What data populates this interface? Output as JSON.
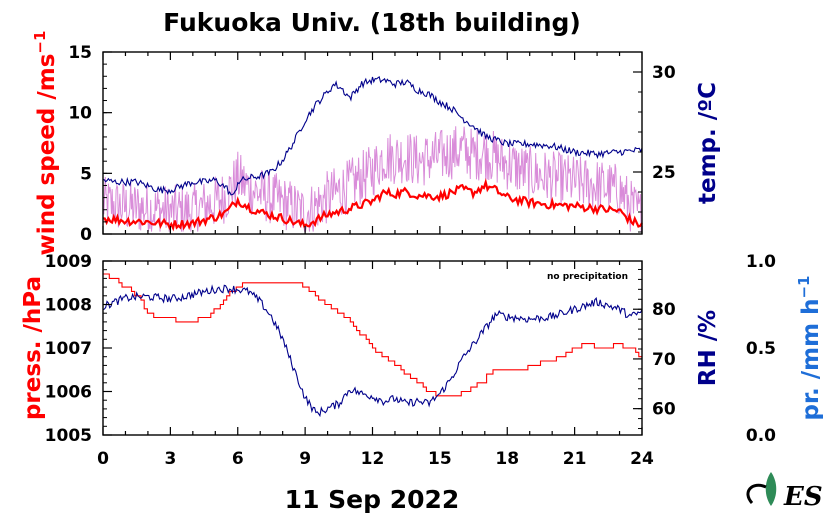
{
  "title": "Fukuoka Univ. (18th building)",
  "date_label": "11 Sep 2022",
  "note": "no precipitation",
  "logo_text": "ES",
  "colors": {
    "wind": "#ff0000",
    "wind_gust": "#cc66cc",
    "temperature": "#00008b",
    "pressure": "#ff0000",
    "humidity": "#00008b",
    "precipitation": "#1e6ed8",
    "logo_leaf": "#2e8b57"
  },
  "chart_data": [
    {
      "type": "line",
      "panel": "top",
      "x_ticks": [
        "0",
        "3",
        "6",
        "9",
        "12",
        "15",
        "18",
        "21",
        "24"
      ],
      "xlim": [
        0,
        24
      ],
      "left_axis": {
        "label": "wind speed /ms",
        "label_superscript": "−1",
        "ylim": [
          0,
          15
        ],
        "ticks": [
          "0",
          "5",
          "10",
          "15"
        ]
      },
      "right_axis": {
        "label": "temp. /ºC",
        "ylim": [
          21.9,
          31
        ],
        "ticks": [
          "25",
          "30"
        ]
      },
      "series": [
        {
          "role": "wind_speed_mean",
          "axis": "left",
          "x": [
            0,
            1,
            2,
            3,
            4,
            5,
            5.5,
            6,
            6.5,
            7,
            8,
            9,
            10,
            11,
            12,
            12.5,
            13,
            13.5,
            14,
            15,
            16,
            16.5,
            17,
            17.5,
            18,
            19,
            20,
            21,
            22,
            23,
            23.5,
            24
          ],
          "y": [
            1.3,
            1.1,
            1,
            0.8,
            0.9,
            1.4,
            1.8,
            2.8,
            2.2,
            1.8,
            1.3,
            0.7,
            1.6,
            2.1,
            2.7,
            3.4,
            3.3,
            3.5,
            3.2,
            3.1,
            3.7,
            3.4,
            4,
            3.6,
            3,
            2.6,
            2.4,
            2.3,
            2.1,
            1.9,
            1.1,
            0.7
          ]
        },
        {
          "role": "wind_speed_gust",
          "axis": "left",
          "x": [
            0,
            1,
            2,
            3,
            4,
            5,
            5.5,
            6,
            6.5,
            7,
            8,
            9,
            10,
            11,
            12,
            12.5,
            13,
            13.5,
            14,
            15,
            16,
            16.5,
            17,
            17.5,
            18,
            19,
            20,
            21,
            22,
            23,
            23.5,
            24
          ],
          "y": [
            2.5,
            2.2,
            2.1,
            1.8,
            1.9,
            2.6,
            3.2,
            4.6,
            3.8,
            3.3,
            2.6,
            1.7,
            3,
            4,
            5.2,
            6.4,
            6.3,
            6.4,
            6,
            6.4,
            7,
            6.5,
            6.8,
            6.2,
            5.8,
            5,
            4.6,
            4.3,
            4,
            3.6,
            2.3,
            1.4
          ]
        },
        {
          "role": "temperature",
          "axis": "right",
          "x": [
            0,
            0.5,
            1,
            1.5,
            2,
            2.5,
            3,
            3.5,
            4,
            4.5,
            5,
            5.5,
            5.8,
            6,
            6.5,
            7,
            7.5,
            8,
            8.5,
            9,
            9.5,
            10,
            10.3,
            10.6,
            11,
            11.5,
            12,
            12.5,
            13,
            13.5,
            14,
            14.5,
            15,
            15.5,
            16,
            16.5,
            17,
            17.5,
            18,
            19,
            20,
            21,
            22,
            23,
            24
          ],
          "y": [
            24.6,
            24.5,
            24.5,
            24.5,
            24.3,
            24.1,
            24.1,
            24.3,
            24.5,
            24.5,
            24.6,
            24.2,
            23.7,
            24.5,
            24.7,
            24.8,
            25,
            25.6,
            26.5,
            27.6,
            28.4,
            29,
            29.4,
            29.2,
            28.7,
            29.4,
            29.6,
            29.6,
            29.4,
            29.5,
            29.1,
            28.9,
            28.5,
            28.2,
            27.7,
            27.3,
            26.8,
            26.6,
            26.4,
            26.4,
            26.3,
            26,
            25.9,
            26,
            26.1
          ]
        }
      ]
    },
    {
      "type": "line",
      "panel": "bottom",
      "x_ticks": [
        "0",
        "3",
        "6",
        "9",
        "12",
        "15",
        "18",
        "21",
        "24"
      ],
      "xlim": [
        0,
        24
      ],
      "left_axis": {
        "label": "press. /hPa",
        "ylim": [
          1005,
          1009
        ],
        "ticks": [
          "1005",
          "1006",
          "1007",
          "1008",
          "1009"
        ]
      },
      "right_axis": {
        "label": "RH /%",
        "ylim": [
          54.7,
          89.7
        ],
        "ticks": [
          "60",
          "70",
          "80"
        ]
      },
      "precip_axis": {
        "label": "pr. /mm h",
        "label_superscript": "−1",
        "ylim": [
          0,
          1
        ],
        "ticks": [
          "0.0",
          "0.5",
          "1.0"
        ]
      },
      "series": [
        {
          "role": "pressure",
          "axis": "left",
          "x": [
            0,
            0.5,
            1,
            1.5,
            2,
            2.5,
            3,
            3.5,
            4,
            4.5,
            5,
            5.5,
            6,
            6.5,
            7,
            7.5,
            8,
            8.5,
            9,
            9.5,
            10,
            10.5,
            11,
            11.5,
            12,
            12.5,
            13,
            13.5,
            14,
            14.5,
            15,
            15.5,
            16,
            16.5,
            17,
            17.5,
            18,
            18.5,
            19,
            19.5,
            20,
            20.5,
            21,
            21.5,
            22,
            22.5,
            23,
            23.5,
            24
          ],
          "y": [
            1008.7,
            1008.6,
            1008.4,
            1008.2,
            1007.8,
            1007.7,
            1007.7,
            1007.6,
            1007.6,
            1007.7,
            1007.9,
            1008.2,
            1008.4,
            1008.5,
            1008.5,
            1008.5,
            1008.5,
            1008.5,
            1008.4,
            1008.2,
            1008,
            1007.8,
            1007.6,
            1007.3,
            1007,
            1006.8,
            1006.6,
            1006.4,
            1006.2,
            1006,
            1005.9,
            1005.9,
            1006,
            1006.1,
            1006.3,
            1006.5,
            1006.5,
            1006.5,
            1006.6,
            1006.7,
            1006.7,
            1006.8,
            1007,
            1007.1,
            1007,
            1007,
            1007.1,
            1007,
            1006.8
          ]
        },
        {
          "role": "humidity",
          "axis": "right",
          "x": [
            0,
            0.5,
            1,
            1.5,
            2,
            2.5,
            3,
            3.5,
            4,
            4.5,
            5,
            5.5,
            6,
            6.5,
            7,
            7.5,
            8,
            8.5,
            9,
            9.5,
            10,
            10.5,
            11,
            11.5,
            12,
            12.5,
            13,
            13.5,
            14,
            14.5,
            15,
            15.5,
            16,
            16.5,
            17,
            17.5,
            18,
            19,
            20,
            21,
            22,
            23,
            23.5,
            24
          ],
          "y": [
            80.5,
            81.4,
            82.2,
            82.5,
            82.5,
            82.3,
            82.1,
            82.4,
            83,
            83.5,
            84,
            84.2,
            84,
            83.5,
            81.5,
            78.5,
            74,
            68,
            62.2,
            59,
            60,
            61,
            64,
            63,
            62.5,
            61.5,
            62,
            61,
            61.5,
            61,
            63,
            66,
            70,
            73,
            76,
            79,
            78.5,
            78,
            78.5,
            80,
            81.5,
            80,
            78.5,
            79.5
          ]
        },
        {
          "role": "precipitation",
          "axis": "precip",
          "x": [
            0,
            24
          ],
          "y": [
            0,
            0
          ]
        }
      ]
    }
  ]
}
